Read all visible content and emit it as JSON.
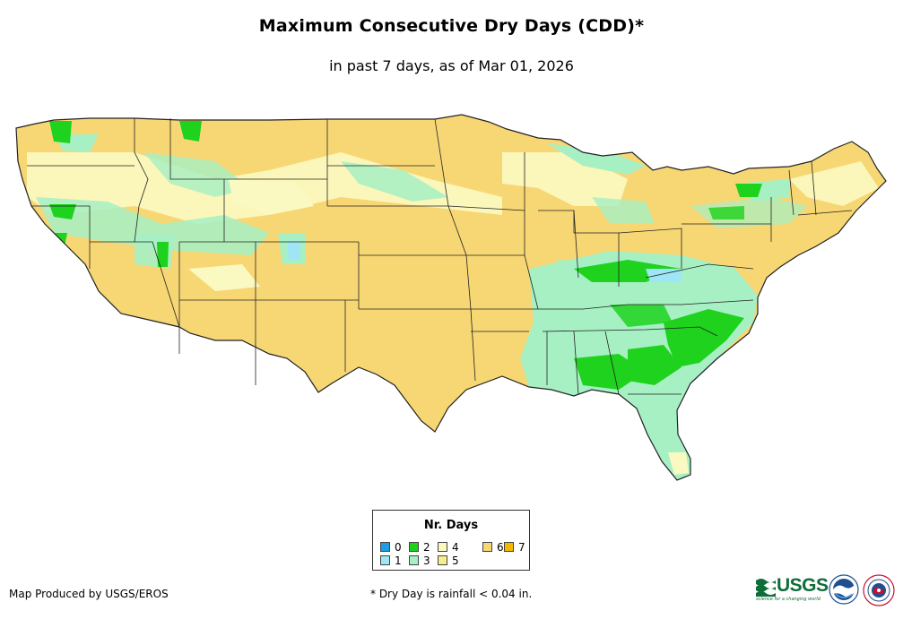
{
  "header": {
    "title": "Maximum Consecutive Dry Days (CDD)*",
    "subtitle": "in past 7 days, as of Mar 01, 2026"
  },
  "legend": {
    "title": "Nr. Days",
    "items": [
      {
        "label": "0",
        "color": "#1a9ee6"
      },
      {
        "label": "1",
        "color": "#9ee6f5"
      },
      {
        "label": "2",
        "color": "#1ed21e"
      },
      {
        "label": "3",
        "color": "#a6f0c4"
      },
      {
        "label": "4",
        "color": "#fbf9c2"
      },
      {
        "label": "5",
        "color": "#f6ee8e"
      },
      {
        "label": "6",
        "color": "#f7d774"
      },
      {
        "label": "7",
        "color": "#f5b800"
      }
    ]
  },
  "footer": {
    "credit": "Map Produced by USGS/EROS",
    "footnote": "* Dry Day is rainfall < 0.04 in."
  },
  "logos": {
    "usgs_text": "USGS",
    "usgs_tagline": "science for a changing world"
  },
  "icons": [
    "usgs-logo-icon",
    "noaa-logo-icon",
    "nws-logo-icon"
  ]
}
